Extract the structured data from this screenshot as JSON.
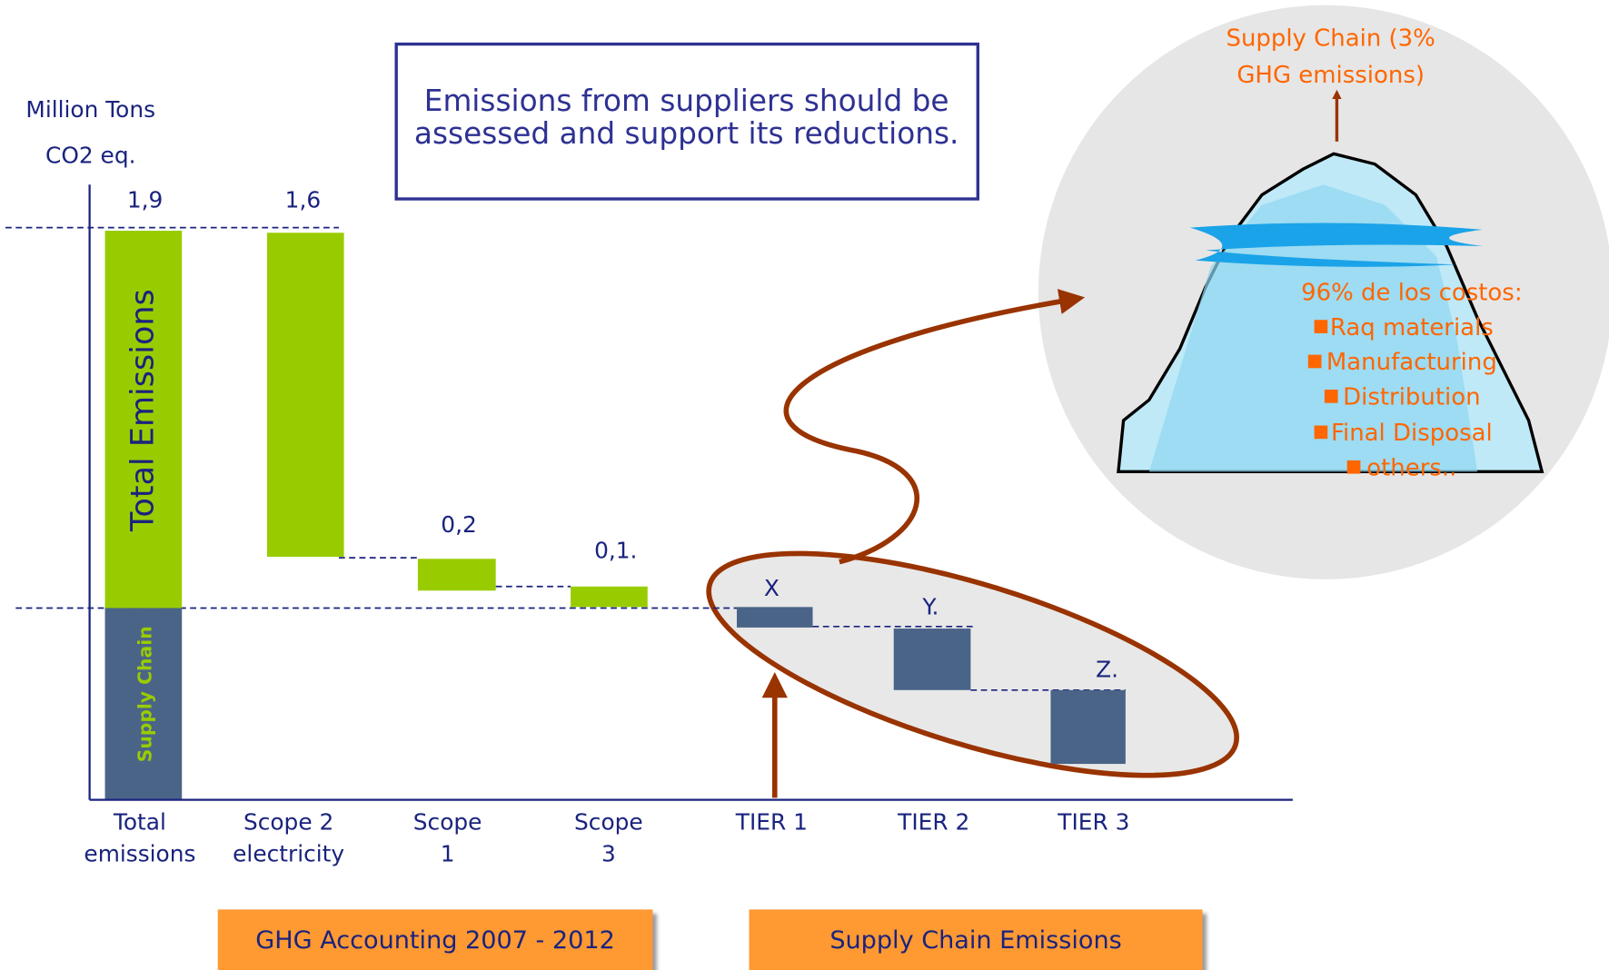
{
  "axis_label": [
    "Million Tons",
    "CO2 eq."
  ],
  "message": [
    "Emissions from suppliers  should be",
    "assessed and support its reductions."
  ],
  "bar_labels": [
    "1,9",
    "1,6",
    "0,2",
    "0,1.",
    "X",
    "Y.",
    "Z."
  ],
  "bar_titles": [
    "Total Emissions",
    "Supply Chain"
  ],
  "categories": [
    [
      "Total",
      "emissions"
    ],
    [
      "Scope 2",
      "electricity"
    ],
    [
      "Scope",
      "1"
    ],
    [
      "Scope",
      "3"
    ],
    [
      "TIER 1"
    ],
    [
      "TIER 2"
    ],
    [
      "TIER 3"
    ]
  ],
  "iceberg": {
    "title": [
      "Supply Chain (3%",
      "GHG emissions)"
    ],
    "heading": "96% de los costos:",
    "items": [
      "Raq materials",
      "Manufacturing",
      "Distribution",
      "Final Disposal",
      "others.."
    ]
  },
  "footer": [
    "GHG Accounting  2007 - 2012",
    "Supply Chain Emissions"
  ]
}
